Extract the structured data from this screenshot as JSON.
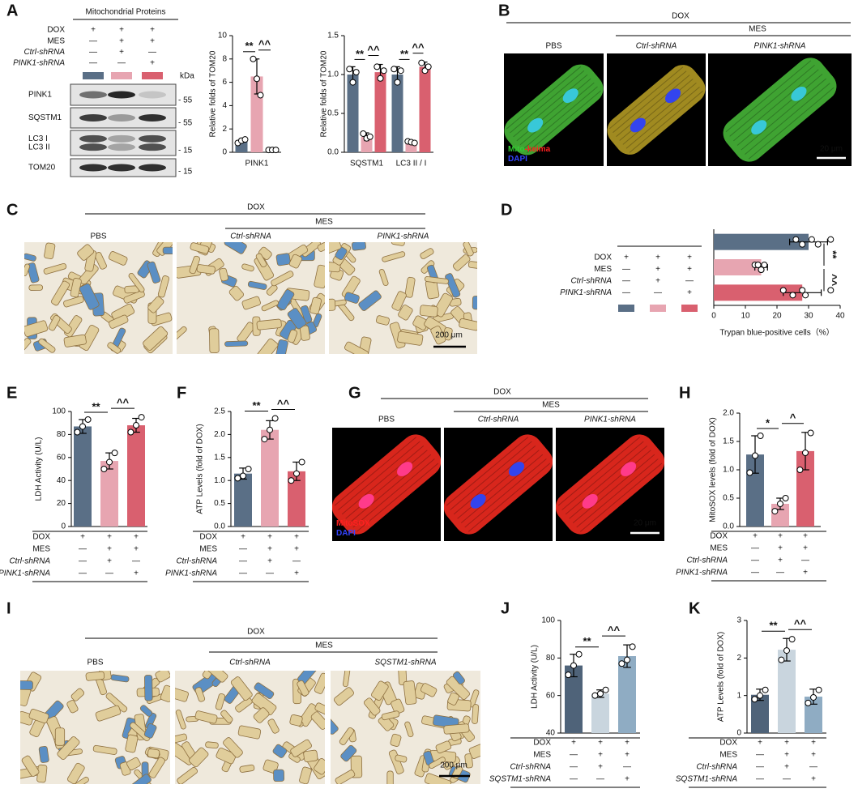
{
  "panel_labels": [
    "A",
    "B",
    "C",
    "D",
    "E",
    "F",
    "G",
    "H",
    "I",
    "J",
    "K"
  ],
  "blot": {
    "title": "Mitochondrial Proteins",
    "conditions": {
      "rows": [
        {
          "label": "DOX",
          "cells": [
            "+",
            "+",
            "+"
          ]
        },
        {
          "label": "MES",
          "cells": [
            "—",
            "+",
            "+"
          ]
        },
        {
          "label": "Ctrl-shRNA",
          "cells": [
            "—",
            "+",
            "—"
          ]
        },
        {
          "label": "PINK1-shRNA",
          "cells": [
            "—",
            "—",
            "+"
          ]
        }
      ]
    },
    "lane_colors": [
      "#5a6f86",
      "#e7a5b1",
      "#d9606f"
    ],
    "kda_label": "kDa",
    "bands": [
      {
        "labels": [
          "PINK1"
        ],
        "marker": "- 55"
      },
      {
        "labels": [
          "SQSTM1"
        ],
        "marker": "- 55"
      },
      {
        "labels": [
          "LC3 I",
          "LC3 II"
        ],
        "marker": "- 15"
      },
      {
        "labels": [
          "TOM20"
        ],
        "marker": "- 15"
      }
    ]
  },
  "images": [
    {
      "header": "DOX",
      "subheader": "MES",
      "columns": [
        "PBS",
        "Ctrl-shRNA",
        "PINK1-shRNA"
      ],
      "stain_legend": [
        [
          {
            "text": "Mito",
            "color": "#33cc33"
          },
          {
            "text": "-keima",
            "color": "#ff2020"
          }
        ],
        [
          {
            "text": "DAPI",
            "color": "#3344ff"
          }
        ]
      ],
      "scale_bar": "20 μm"
    },
    {
      "header": "DOX",
      "subheader": "MES",
      "columns": [
        "PBS",
        "Ctrl-shRNA",
        "PINK1-shRNA"
      ],
      "scale_bar": "200 μm"
    },
    {
      "header": "DOX",
      "subheader": "MES",
      "columns": [
        "PBS",
        "Ctrl-shRNA",
        "PINK1-shRNA"
      ],
      "stain_legend": [
        [
          {
            "text": "MitoSOX",
            "color": "#ff2020"
          }
        ],
        [
          {
            "text": "DAPI",
            "color": "#3344ff"
          }
        ]
      ],
      "scale_bar": "20 μm"
    },
    {
      "header": "DOX",
      "subheader": "MES",
      "columns": [
        "PBS",
        "Ctrl-shRNA",
        "SQSTM1-shRNA"
      ],
      "scale_bar": "200 μm"
    }
  ],
  "chart_data": [
    {
      "type": "bar",
      "ylabel": "Relative folds of TOM20",
      "categories": [
        "PINK1"
      ],
      "series": [
        {
          "color": "#5a6f86",
          "values": [
            1.0
          ],
          "errors": [
            0.15
          ],
          "points": [
            [
              0.8,
              1.0,
              1.1
            ]
          ]
        },
        {
          "color": "#e7a5b1",
          "values": [
            6.5
          ],
          "errors": [
            1.5
          ],
          "points": [
            [
              8.0,
              6.3,
              4.9
            ]
          ]
        },
        {
          "color": "#d9606f",
          "values": [
            0.2
          ],
          "errors": [
            0.05
          ],
          "points": [
            [
              0.2,
              0.2,
              0.2
            ]
          ]
        }
      ],
      "significance": [
        [
          "**",
          "^^"
        ]
      ],
      "ylim": [
        0,
        10
      ],
      "yticks": [
        0,
        2,
        4,
        6,
        8,
        10
      ]
    },
    {
      "type": "bar",
      "ylabel": "Relative folds of TOM20",
      "categories": [
        "SQSTM1",
        "LC3 II / I"
      ],
      "series": [
        {
          "color": "#5a6f86",
          "values": [
            1.0,
            1.0
          ],
          "errors": [
            0.1,
            0.1
          ],
          "points": [
            [
              1.07,
              0.9,
              1.03
            ],
            [
              1.07,
              0.9,
              1.05
            ]
          ]
        },
        {
          "color": "#e7a5b1",
          "values": [
            0.2,
            0.13
          ],
          "errors": [
            0.05,
            0.02
          ],
          "points": [
            [
              0.24,
              0.18,
              0.2
            ],
            [
              0.14,
              0.13,
              0.12
            ]
          ]
        },
        {
          "color": "#d9606f",
          "values": [
            1.03,
            1.1
          ],
          "errors": [
            0.1,
            0.06
          ],
          "points": [
            [
              1.1,
              0.95,
              1.05
            ],
            [
              1.15,
              1.05,
              1.1
            ]
          ]
        }
      ],
      "significance": [
        [
          "**",
          "^^"
        ],
        [
          "**",
          "^^"
        ]
      ],
      "ylim": [
        0,
        1.5
      ],
      "yticks": [
        {
          "value": 0,
          "label": "0.0"
        },
        0.5,
        {
          "value": 1,
          "label": "1.0"
        },
        1.5
      ]
    },
    {
      "type": "barh",
      "xlabel": "Trypan blue-positive cells（%）",
      "series": [
        {
          "color": "#5a6f86",
          "values": [
            30
          ],
          "errors": [
            6
          ],
          "points": [
            [
              26,
              28,
              31,
              33,
              37
            ]
          ]
        },
        {
          "color": "#e7a5b1",
          "values": [
            15
          ],
          "errors": [
            2
          ],
          "points": [
            [
              13,
              15,
              16,
              15,
              14
            ]
          ]
        },
        {
          "color": "#d9606f",
          "values": [
            28
          ],
          "errors": [
            6
          ],
          "points": [
            [
              22,
              25,
              28,
              29,
              37
            ]
          ]
        }
      ],
      "significance": [
        [
          "**",
          "^^"
        ]
      ],
      "xlim": [
        0,
        40
      ],
      "xticks": [
        0,
        10,
        20,
        30,
        40
      ],
      "conditions": {
        "rows": [
          {
            "label": "DOX",
            "cells": [
              "+",
              "+",
              "+"
            ]
          },
          {
            "label": "MES",
            "cells": [
              "—",
              "+",
              "+"
            ]
          },
          {
            "label": "Ctrl-shRNA",
            "cells": [
              "—",
              "+",
              "—"
            ]
          },
          {
            "label": "PINK1-shRNA",
            "cells": [
              "—",
              "—",
              "+"
            ]
          }
        ]
      }
    },
    {
      "type": "bar",
      "ylabel": "LDH Activity (U/L)",
      "series": [
        {
          "color": "#5a6f86",
          "values": [
            87
          ],
          "errors": [
            6
          ],
          "points": [
            [
              82,
              87,
              93
            ]
          ]
        },
        {
          "color": "#e7a5b1",
          "values": [
            57
          ],
          "errors": [
            7
          ],
          "points": [
            [
              50,
              56,
              64
            ]
          ]
        },
        {
          "color": "#d9606f",
          "values": [
            88
          ],
          "errors": [
            6
          ],
          "points": [
            [
              82,
              88,
              95
            ]
          ]
        }
      ],
      "significance": [
        [
          "**",
          "^^"
        ]
      ],
      "ylim": [
        0,
        100
      ],
      "yticks": [
        0,
        20,
        40,
        60,
        80,
        100
      ],
      "conditions": {
        "rows": [
          {
            "label": "DOX",
            "cells": [
              "+",
              "+",
              "+"
            ]
          },
          {
            "label": "MES",
            "cells": [
              "—",
              "+",
              "+"
            ]
          },
          {
            "label": "Ctrl-shRNA",
            "cells": [
              "—",
              "+",
              "—"
            ]
          },
          {
            "label": "PINK1-shRNA",
            "cells": [
              "—",
              "—",
              "+"
            ]
          }
        ]
      }
    },
    {
      "type": "bar",
      "ylabel": "ATP Levels (fold of DOX)",
      "series": [
        {
          "color": "#5a6f86",
          "values": [
            1.15
          ],
          "errors": [
            0.12
          ],
          "points": [
            [
              1.05,
              1.1,
              1.25
            ]
          ]
        },
        {
          "color": "#e7a5b1",
          "values": [
            2.1
          ],
          "errors": [
            0.2
          ],
          "points": [
            [
              1.9,
              2.1,
              2.35
            ]
          ]
        },
        {
          "color": "#d9606f",
          "values": [
            1.2
          ],
          "errors": [
            0.2
          ],
          "points": [
            [
              1.0,
              1.15,
              1.4
            ]
          ]
        }
      ],
      "significance": [
        [
          "**",
          "^^"
        ]
      ],
      "ylim": [
        0,
        2.5
      ],
      "yticks": [
        {
          "value": 0,
          "label": "0.0"
        },
        0.5,
        {
          "value": 1,
          "label": "1.0"
        },
        1.5,
        {
          "value": 2,
          "label": "2.0"
        },
        2.5
      ],
      "conditions": {
        "rows": [
          {
            "label": "DOX",
            "cells": [
              "+",
              "+",
              "+"
            ]
          },
          {
            "label": "MES",
            "cells": [
              "—",
              "+",
              "+"
            ]
          },
          {
            "label": "Ctrl-shRNA",
            "cells": [
              "—",
              "+",
              "—"
            ]
          },
          {
            "label": "PINK1-shRNA",
            "cells": [
              "—",
              "—",
              "+"
            ]
          }
        ]
      }
    },
    {
      "type": "bar",
      "ylabel": "MitoSOX levels (fold of DOX)",
      "series": [
        {
          "color": "#5a6f86",
          "values": [
            1.27
          ],
          "errors": [
            0.33
          ],
          "points": [
            [
              0.95,
              1.25,
              1.6
            ]
          ]
        },
        {
          "color": "#e7a5b1",
          "values": [
            0.4
          ],
          "errors": [
            0.1
          ],
          "points": [
            [
              0.27,
              0.4,
              0.5
            ]
          ]
        },
        {
          "color": "#d9606f",
          "values": [
            1.33
          ],
          "errors": [
            0.33
          ],
          "points": [
            [
              1.0,
              1.3,
              1.65
            ]
          ]
        }
      ],
      "significance": [
        [
          "*",
          "^"
        ]
      ],
      "ylim": [
        0,
        2
      ],
      "yticks": [
        {
          "value": 0,
          "label": "0.0"
        },
        0.5,
        {
          "value": 1,
          "label": "1.0"
        },
        1.5,
        {
          "value": 2,
          "label": "2.0"
        }
      ],
      "conditions": {
        "rows": [
          {
            "label": "DOX",
            "cells": [
              "+",
              "+",
              "+"
            ]
          },
          {
            "label": "MES",
            "cells": [
              "—",
              "+",
              "+"
            ]
          },
          {
            "label": "Ctrl-shRNA",
            "cells": [
              "—",
              "+",
              "—"
            ]
          },
          {
            "label": "PINK1-shRNA",
            "cells": [
              "—",
              "—",
              "+"
            ]
          }
        ]
      }
    },
    {
      "type": "bar",
      "ylabel": "LDH Activity (U/L)",
      "series": [
        {
          "color": "#4f6379",
          "values": [
            76
          ],
          "errors": [
            6
          ],
          "points": [
            [
              71,
              76,
              82
            ]
          ]
        },
        {
          "color": "#c9d5de",
          "values": [
            61
          ],
          "errors": [
            2
          ],
          "points": [
            [
              60,
              61,
              63
            ]
          ]
        },
        {
          "color": "#8facc3",
          "values": [
            81
          ],
          "errors": [
            6
          ],
          "points": [
            [
              77,
              79,
              86
            ]
          ]
        }
      ],
      "significance": [
        [
          "**",
          "^^"
        ]
      ],
      "ylim": [
        40,
        100
      ],
      "yticks": [
        40,
        60,
        80,
        100
      ],
      "conditions": {
        "rows": [
          {
            "label": "DOX",
            "cells": [
              "+",
              "+",
              "+"
            ]
          },
          {
            "label": "MES",
            "cells": [
              "—",
              "+",
              "+"
            ]
          },
          {
            "label": "Ctrl-shRNA",
            "cells": [
              "—",
              "+",
              "—"
            ]
          },
          {
            "label": "SQSTM1-shRNA",
            "cells": [
              "—",
              "—",
              "+"
            ]
          }
        ]
      }
    },
    {
      "type": "bar",
      "ylabel": "ATP Levels (fold of DOX)",
      "series": [
        {
          "color": "#4f6379",
          "values": [
            1.02
          ],
          "errors": [
            0.15
          ],
          "points": [
            [
              0.9,
              1.0,
              1.15
            ]
          ]
        },
        {
          "color": "#c9d5de",
          "values": [
            2.22
          ],
          "errors": [
            0.3
          ],
          "points": [
            [
              1.95,
              2.2,
              2.5
            ]
          ]
        },
        {
          "color": "#8facc3",
          "values": [
            0.97
          ],
          "errors": [
            0.2
          ],
          "points": [
            [
              0.8,
              0.95,
              1.15
            ]
          ]
        }
      ],
      "significance": [
        [
          "**",
          "^^"
        ]
      ],
      "ylim": [
        0,
        3
      ],
      "yticks": [
        0,
        1,
        2,
        3
      ],
      "conditions": {
        "rows": [
          {
            "label": "DOX",
            "cells": [
              "+",
              "+",
              "+"
            ]
          },
          {
            "label": "MES",
            "cells": [
              "—",
              "+",
              "+"
            ]
          },
          {
            "label": "Ctrl-shRNA",
            "cells": [
              "—",
              "+",
              "—"
            ]
          },
          {
            "label": "SQSTM1-shRNA",
            "cells": [
              "—",
              "—",
              "+"
            ]
          }
        ]
      }
    }
  ]
}
